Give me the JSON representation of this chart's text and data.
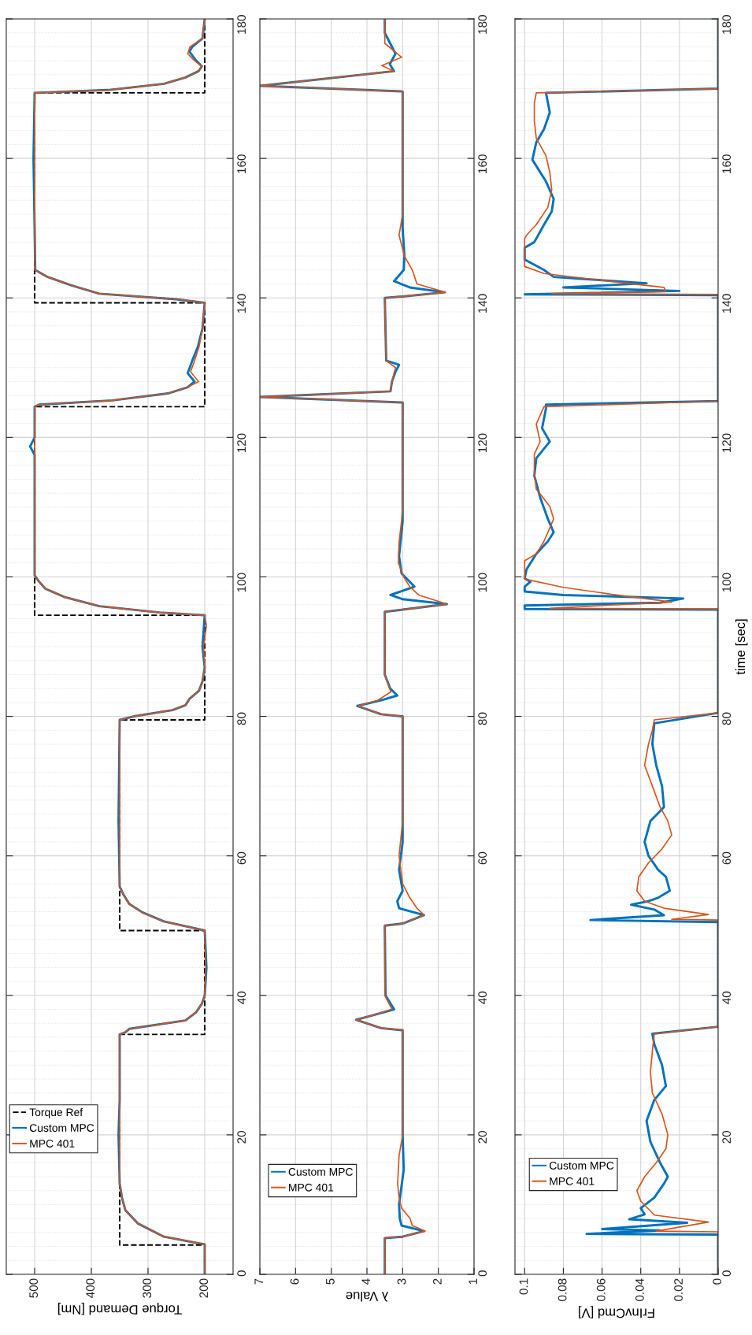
{
  "chart_data": [
    {
      "type": "line",
      "xlabel": "Torque Demand [Nm]",
      "ylim": [
        0,
        180
      ],
      "yticks": [
        0,
        20,
        40,
        60,
        80,
        100,
        120,
        140,
        160,
        180
      ],
      "xlim": [
        550,
        150
      ],
      "xticks": [
        200,
        300,
        400,
        500
      ],
      "grid": true,
      "legend": "bottom left",
      "series": [
        {
          "name": "Torque Ref",
          "type": "step",
          "line_style": "dashed",
          "color": "#000000",
          "values": [
            0,
            4.2,
            34.4,
            49.3,
            79.5,
            94.5,
            124.4,
            139.3,
            169.4,
            180
          ],
          "x": [
            200,
            350,
            200,
            350,
            200,
            500,
            200,
            500,
            200,
            200
          ]
        },
        {
          "name": "Custom MPC",
          "color": "#0072bd",
          "values": [
            0,
            4.3,
            5.4,
            7.3,
            9.2,
            11,
            13,
            20,
            25,
            34.4,
            34.7,
            35.2,
            36.4,
            37.6,
            38.8,
            40,
            44,
            49.3,
            50.6,
            51.9,
            53.1,
            54.4,
            55.6,
            65,
            79.5,
            80,
            80.9,
            81.6,
            82.5,
            83.7,
            85,
            87,
            90,
            94.5,
            94.9,
            95.8,
            97.1,
            98.3,
            99.3,
            100.2,
            110,
            117.5,
            118.7,
            120,
            124.4,
            124.7,
            125.3,
            126.3,
            127.2,
            128,
            129.2,
            131,
            133,
            135.6,
            139.3,
            139.8,
            140.6,
            141.8,
            143,
            144,
            150,
            160,
            169.4,
            169.8,
            170.7,
            171.6,
            172.5,
            173.2,
            174,
            175.3,
            176,
            177.2,
            180
          ],
          "x": [
            200,
            200,
            272,
            318,
            340,
            346,
            350,
            352,
            350,
            350,
            340,
            333,
            234,
            215,
            205,
            200,
            197,
            200,
            272,
            310,
            333,
            343,
            350,
            352,
            350,
            325,
            257,
            234,
            227,
            210,
            204,
            200,
            204,
            200,
            280,
            386,
            447,
            481,
            492,
            500,
            500,
            500,
            508,
            500,
            500,
            492,
            363,
            265,
            230,
            218,
            230,
            222,
            212,
            204,
            200,
            250,
            386,
            435,
            477,
            499,
            500,
            502,
            500,
            371,
            272,
            234,
            211,
            205,
            215,
            227,
            222,
            204,
            200
          ]
        },
        {
          "name": "MPC 401",
          "color": "#d95319",
          "values": [
            0,
            4.3,
            5.4,
            7.3,
            9.2,
            11,
            13,
            20,
            25,
            34.4,
            34.7,
            35.2,
            36.4,
            37.6,
            38.8,
            40,
            44,
            49.3,
            50.6,
            51.9,
            53.1,
            54.4,
            55.6,
            65,
            79.5,
            80,
            80.9,
            81.6,
            82.5,
            83.7,
            85,
            87,
            90,
            93,
            94.5,
            94.9,
            95.8,
            97.1,
            98.3,
            99.3,
            100.2,
            110,
            120,
            124.4,
            124.7,
            125.3,
            126.3,
            127.2,
            128,
            129.4,
            131,
            133,
            135.6,
            139.3,
            139.8,
            140.6,
            141.8,
            143,
            144,
            150,
            160,
            169.4,
            169.8,
            170.7,
            171.6,
            172.5,
            173.2,
            174,
            175,
            176,
            177.2,
            180
          ],
          "x": [
            200,
            200,
            272,
            318,
            340,
            346,
            350,
            350,
            350,
            350,
            340,
            333,
            234,
            215,
            205,
            200,
            198,
            200,
            272,
            310,
            333,
            343,
            350,
            350,
            350,
            325,
            257,
            234,
            227,
            210,
            204,
            200,
            202,
            197,
            200,
            280,
            386,
            447,
            481,
            492,
            500,
            500,
            500,
            500,
            492,
            363,
            265,
            230,
            211,
            225,
            218,
            210,
            204,
            200,
            250,
            386,
            435,
            477,
            499,
            500,
            500,
            500,
            371,
            272,
            234,
            211,
            205,
            218,
            230,
            226,
            204,
            200
          ]
        }
      ]
    },
    {
      "type": "line",
      "xlabel": "λ Value",
      "ylim": [
        0,
        180
      ],
      "yticks": [
        0,
        20,
        40,
        60,
        80,
        100,
        120,
        140,
        160,
        180
      ],
      "xlim": [
        7,
        1
      ],
      "xticks": [
        1,
        2,
        3,
        4,
        5,
        6,
        7
      ],
      "grid": true,
      "legend": "bottom left",
      "series": [
        {
          "name": "Custom MPC",
          "color": "#0072bd",
          "values": [
            0,
            5.2,
            5.4,
            6.2,
            7,
            8,
            10,
            15,
            20,
            35,
            35.3,
            36.5,
            37.2,
            38,
            40,
            50,
            50.3,
            51.5,
            52.5,
            53.5,
            55,
            58,
            62,
            80,
            80.3,
            81.5,
            82.3,
            83,
            84,
            86,
            95,
            95.3,
            96.1,
            96.8,
            97.4,
            98.0,
            98.6,
            100.5,
            103,
            108,
            125,
            125.8,
            126.6,
            128,
            129.4,
            130.4,
            131,
            140,
            140.2,
            140.8,
            141.5,
            142.4,
            144,
            146,
            150,
            169.6,
            170.4,
            172.5,
            173.5,
            175,
            178,
            180
          ],
          "x": [
            3.5,
            3.5,
            3.0,
            2.4,
            3.03,
            3.08,
            3.1,
            2.97,
            3.0,
            3.0,
            3.6,
            4.3,
            3.8,
            3.24,
            3.48,
            3.5,
            3.0,
            2.4,
            3.1,
            3.15,
            3.0,
            3.1,
            3.0,
            3.0,
            3.6,
            4.27,
            3.6,
            3.15,
            3.35,
            3.5,
            3.5,
            3.0,
            1.76,
            3.0,
            3.34,
            3.0,
            2.67,
            3.03,
            3.1,
            3.0,
            3.0,
            7,
            3.34,
            3.3,
            3.2,
            3.1,
            3.46,
            3.5,
            3.0,
            1.82,
            2.8,
            3.24,
            2.97,
            2.95,
            3.0,
            3.0,
            7,
            3.24,
            3.36,
            3.2,
            3.5,
            3.5
          ]
        },
        {
          "name": "MPC 401",
          "color": "#d95319",
          "values": [
            0,
            5.2,
            5.4,
            6.2,
            7,
            8,
            9.5,
            11,
            13,
            17,
            20,
            35,
            35.3,
            36.5,
            37.2,
            38,
            40,
            50,
            50.3,
            51.5,
            52.5,
            54,
            56,
            60,
            65,
            80,
            80.3,
            81.5,
            82.3,
            83.5,
            86,
            95,
            95.3,
            96.1,
            97.4,
            98.6,
            100,
            102,
            105,
            108,
            110,
            125,
            125.8,
            126.6,
            128,
            130,
            131,
            140,
            140.2,
            140.8,
            142,
            144,
            146,
            149,
            152,
            169.6,
            170.4,
            172.5,
            173.3,
            174.5,
            176.5,
            180
          ],
          "x": [
            3.5,
            3.5,
            3.0,
            2.37,
            2.73,
            2.79,
            3.03,
            3.1,
            3.14,
            3.1,
            3.0,
            3.0,
            3.6,
            4.3,
            3.8,
            3.3,
            3.5,
            3.5,
            3.0,
            2.4,
            2.6,
            2.8,
            3.0,
            3.1,
            3.0,
            3.0,
            3.6,
            4.25,
            3.7,
            3.33,
            3.5,
            3.5,
            3.0,
            1.76,
            2.55,
            2.8,
            2.97,
            3.12,
            3.1,
            3.03,
            3.0,
            3.0,
            7,
            3.34,
            3.3,
            3.2,
            3.46,
            3.5,
            3.0,
            1.8,
            2.6,
            2.73,
            2.95,
            3.1,
            3.0,
            3.0,
            7,
            3.24,
            3.58,
            3.03,
            3.5,
            3.5
          ]
        }
      ]
    },
    {
      "type": "line",
      "ylabel": "time [sec]",
      "xlabel": "FrInvCmd [V]",
      "ylim": [
        0,
        180
      ],
      "yticks": [
        0,
        20,
        40,
        60,
        80,
        100,
        120,
        140,
        160,
        180
      ],
      "xlim": [
        0.105,
        0
      ],
      "xticks": [
        0,
        0.02,
        0.04,
        0.06,
        0.08,
        0.1
      ],
      "grid": true,
      "legend": "bottom left",
      "series": [
        {
          "name": "Custom MPC",
          "color": "#0072bd",
          "values": [
            0,
            5.7,
            5.8,
            6.3,
            6.5,
            7.4,
            7.9,
            8.6,
            9.5,
            11,
            13,
            14,
            16,
            19,
            22,
            25,
            27,
            30,
            33,
            34.5,
            35.5,
            50.5,
            50.8,
            51.5,
            52.3,
            53,
            53.5,
            54,
            55,
            57,
            58,
            60,
            62,
            65,
            67,
            70,
            73,
            76,
            79,
            80.5,
            95.3,
            95.4,
            95.9,
            96.3,
            96.9,
            97.4,
            97.9,
            98.6,
            99.3,
            99.8,
            101.1,
            103.3,
            105.1,
            106.4,
            108.3,
            111.4,
            114.5,
            117,
            119.4,
            121.3,
            124.1,
            124.7,
            125.2,
            140.4,
            140.5,
            141,
            141.5,
            142.1,
            143,
            144,
            145.5,
            147.2,
            148,
            150.5,
            152.4,
            154.2,
            156.7,
            159.8,
            162.3,
            164.2,
            166.6,
            169.4,
            170,
            180
          ],
          "x": [
            0,
            0,
            0.068,
            0.03,
            0.06,
            0.016,
            0.046,
            0.038,
            0.04,
            0.033,
            0.028,
            0.026,
            0.03,
            0.035,
            0.037,
            0.033,
            0.027,
            0.029,
            0.033,
            0.034,
            0,
            0,
            0.066,
            0.028,
            0.033,
            0.045,
            0.036,
            0.031,
            0.025,
            0.027,
            0.031,
            0.036,
            0.038,
            0.035,
            0.028,
            0.029,
            0.032,
            0.034,
            0.033,
            0,
            0,
            0.1,
            0.1,
            0.03,
            0.018,
            0.08,
            0.1,
            0.1,
            0.097,
            0.1,
            0.099,
            0.094,
            0.088,
            0.085,
            0.088,
            0.092,
            0.095,
            0.094,
            0.087,
            0.091,
            0.089,
            0.089,
            0,
            0,
            0.1,
            0.02,
            0.08,
            0.037,
            0.085,
            0.09,
            0.1,
            0.1,
            0.095,
            0.09,
            0.086,
            0.085,
            0.089,
            0.096,
            0.094,
            0.09,
            0.087,
            0.089,
            0,
            0
          ]
        },
        {
          "name": "MPC 401",
          "color": "#d95319",
          "values": [
            0,
            6.1,
            6.2,
            7.5,
            8.5,
            10.5,
            12,
            14,
            16,
            18,
            20,
            23,
            26,
            29,
            32,
            34.5,
            35.5,
            50.8,
            50.9,
            51.6,
            52.5,
            53.5,
            55,
            57,
            59,
            61,
            63,
            65,
            67,
            70,
            73,
            76,
            78,
            79.5,
            80.5,
            95.4,
            95.5,
            96.4,
            97.5,
            98.5,
            99.7,
            102.3,
            103.3,
            105.1,
            108.3,
            110.1,
            112.6,
            115.1,
            117.6,
            119.4,
            121.9,
            124.4,
            125.2,
            140.5,
            140.6,
            140.9,
            141.5,
            142.5,
            143.5,
            144.5,
            148.5,
            149,
            150.5,
            153,
            155.5,
            158,
            160.4,
            162.9,
            165.4,
            167.9,
            169.4,
            170,
            180
          ],
          "x": [
            0,
            0,
            0.032,
            0.005,
            0.033,
            0.04,
            0.042,
            0.038,
            0.032,
            0.027,
            0.026,
            0.029,
            0.034,
            0.035,
            0.034,
            0.033,
            0,
            0,
            0.024,
            0.005,
            0.028,
            0.038,
            0.042,
            0.041,
            0.036,
            0.029,
            0.024,
            0.026,
            0.03,
            0.034,
            0.038,
            0.036,
            0.034,
            0.033,
            0,
            0,
            0.087,
            0.024,
            0.055,
            0.08,
            0.1,
            0.1,
            0.094,
            0.09,
            0.085,
            0.087,
            0.094,
            0.095,
            0.095,
            0.092,
            0.094,
            0.09,
            0,
            0,
            0.086,
            0.027,
            0.028,
            0.06,
            0.09,
            0.1,
            0.1,
            0.099,
            0.094,
            0.088,
            0.086,
            0.087,
            0.089,
            0.094,
            0.095,
            0.095,
            0.094,
            0,
            0
          ]
        }
      ]
    }
  ]
}
